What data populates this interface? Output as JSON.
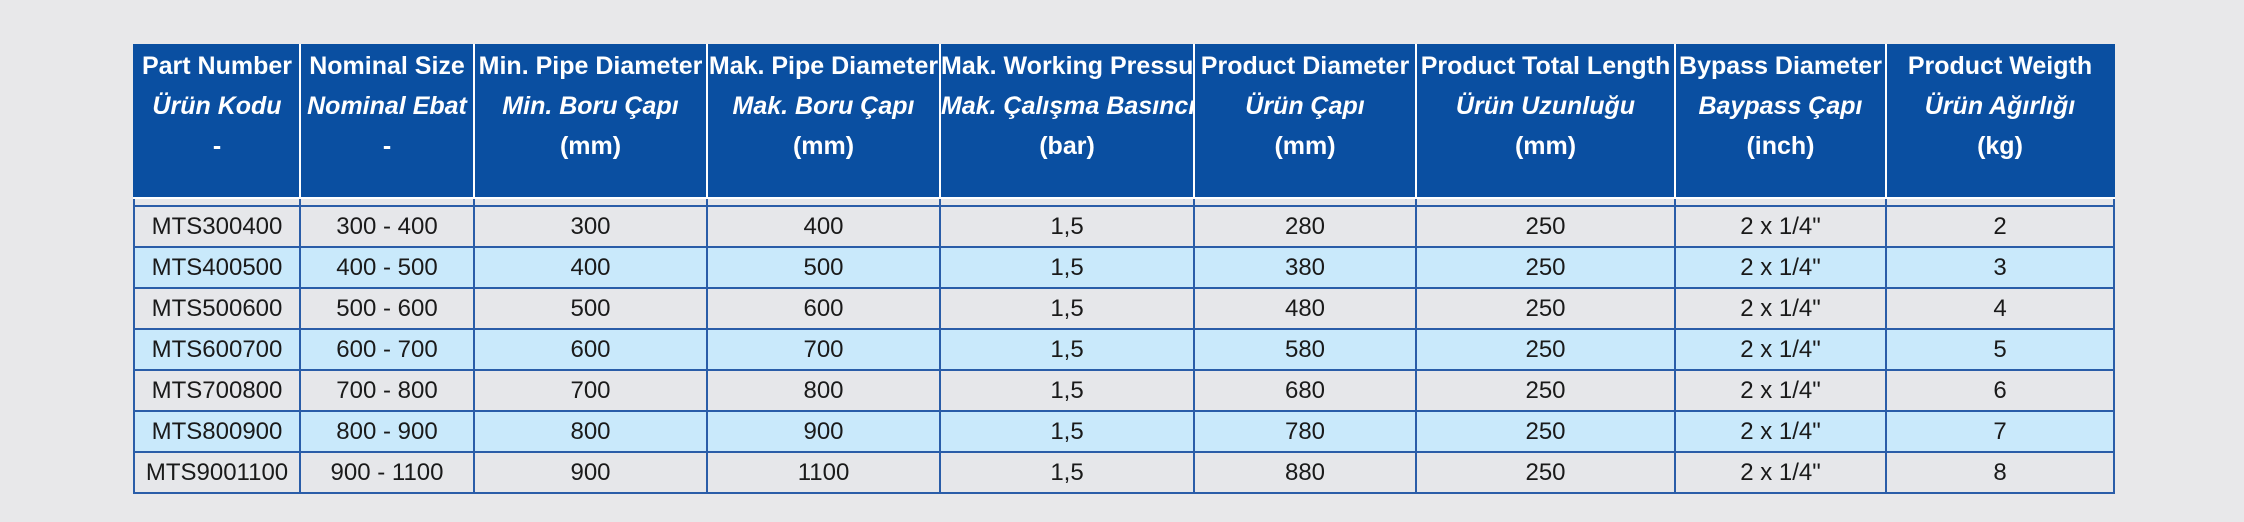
{
  "table": {
    "headers": [
      {
        "en": "Part Number",
        "tr": "Ürün Kodu",
        "unit": "-"
      },
      {
        "en": "Nominal Size",
        "tr": "Nominal Ebat",
        "unit": "-"
      },
      {
        "en": "Min. Pipe Diameter",
        "tr": "Min. Boru Çapı",
        "unit": "(mm)"
      },
      {
        "en": "Mak. Pipe Diameter",
        "tr": "Mak. Boru Çapı",
        "unit": "(mm)"
      },
      {
        "en": "Mak. Working Pressure",
        "tr": "Mak. Çalışma Basıncı",
        "unit": "(bar)"
      },
      {
        "en": "Product Diameter",
        "tr": "Ürün Çapı",
        "unit": "(mm)"
      },
      {
        "en": "Product Total Length",
        "tr": "Ürün Uzunluğu",
        "unit": "(mm)"
      },
      {
        "en": "Bypass Diameter",
        "tr": "Baypass Çapı",
        "unit": "(inch)"
      },
      {
        "en": "Product Weigth",
        "tr": "Ürün Ağırlığı",
        "unit": "(kg)"
      }
    ],
    "rows": [
      [
        "MTS300400",
        "300 - 400",
        "300",
        "400",
        "1,5",
        "280",
        "250",
        "2 x 1/4\"",
        "2"
      ],
      [
        "MTS400500",
        "400 - 500",
        "400",
        "500",
        "1,5",
        "380",
        "250",
        "2 x 1/4\"",
        "3"
      ],
      [
        "MTS500600",
        "500 - 600",
        "500",
        "600",
        "1,5",
        "480",
        "250",
        "2 x 1/4\"",
        "4"
      ],
      [
        "MTS600700",
        "600 - 700",
        "600",
        "700",
        "1,5",
        "580",
        "250",
        "2 x 1/4\"",
        "5"
      ],
      [
        "MTS700800",
        "700 - 800",
        "700",
        "800",
        "1,5",
        "680",
        "250",
        "2 x 1/4\"",
        "6"
      ],
      [
        "MTS800900",
        "800 - 900",
        "800",
        "900",
        "1,5",
        "780",
        "250",
        "2 x 1/4\"",
        "7"
      ],
      [
        "MTS9001100",
        "900 - 1100",
        "900",
        "1100",
        "1,5",
        "880",
        "250",
        "2 x 1/4\"",
        "8"
      ]
    ]
  },
  "colors": {
    "header_bg": "#0a4fa1",
    "row_odd": "#e6e7ea",
    "row_even": "#c9e9fb",
    "border": "#2a5da8"
  }
}
